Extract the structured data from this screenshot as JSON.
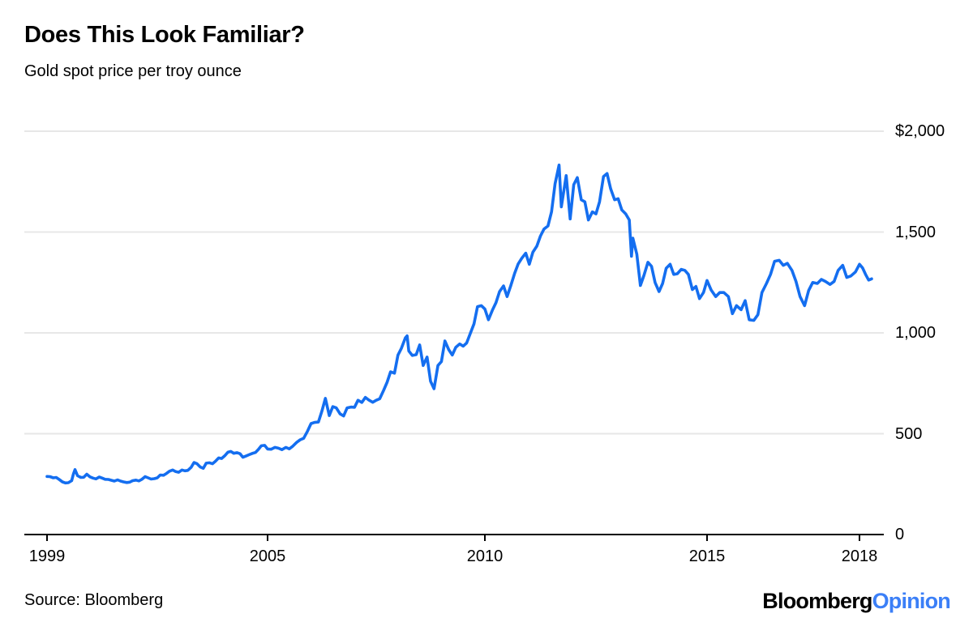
{
  "header": {
    "title": "Does This Look Familiar?",
    "subtitle": "Gold spot price per troy ounce"
  },
  "footer": {
    "source": "Source: Bloomberg",
    "logo": {
      "brand": "Bloomberg",
      "section": "Opinion"
    }
  },
  "colors": {
    "line": "#146ef0",
    "logo_section": "#3b7ff7",
    "grid": "#e7e7e7",
    "axis": "#000000",
    "text": "#000000"
  },
  "chart_data": {
    "type": "line",
    "title": "Does This Look Familiar?",
    "subtitle": "Gold spot price per troy ounce",
    "unit": "USD per troy ounce",
    "grid": "horizontal",
    "legend": "none",
    "ylim": [
      0,
      2000
    ],
    "y_ticks": [
      {
        "value": 2000,
        "label": "$2,000"
      },
      {
        "value": 1500,
        "label": "1,500"
      },
      {
        "value": 1000,
        "label": "1,000"
      },
      {
        "value": 500,
        "label": "500"
      },
      {
        "value": 0,
        "label": "0"
      }
    ],
    "x_ticks": [
      {
        "year": 1999,
        "label": "1999"
      },
      {
        "year": 2005,
        "label": "2005"
      },
      {
        "year": 2010,
        "label": "2010"
      },
      {
        "year": 2015,
        "label": "2015"
      },
      {
        "year": 2018,
        "label": "2018"
      }
    ],
    "series": [
      {
        "name": "Gold spot price",
        "points": [
          [
            1999.0,
            288
          ],
          [
            1999.08,
            287
          ],
          [
            1999.17,
            281
          ],
          [
            1999.25,
            283
          ],
          [
            1999.33,
            273
          ],
          [
            1999.42,
            261
          ],
          [
            1999.5,
            256
          ],
          [
            1999.58,
            257
          ],
          [
            1999.67,
            267
          ],
          [
            1999.72,
            301
          ],
          [
            1999.76,
            322
          ],
          [
            1999.83,
            292
          ],
          [
            1999.92,
            283
          ],
          [
            2000.0,
            284
          ],
          [
            2000.08,
            299
          ],
          [
            2000.17,
            286
          ],
          [
            2000.25,
            280
          ],
          [
            2000.33,
            276
          ],
          [
            2000.42,
            285
          ],
          [
            2000.5,
            280
          ],
          [
            2000.58,
            274
          ],
          [
            2000.67,
            273
          ],
          [
            2000.75,
            269
          ],
          [
            2000.83,
            265
          ],
          [
            2000.92,
            271
          ],
          [
            2001.0,
            265
          ],
          [
            2001.08,
            261
          ],
          [
            2001.17,
            258
          ],
          [
            2001.25,
            260
          ],
          [
            2001.33,
            267
          ],
          [
            2001.42,
            270
          ],
          [
            2001.5,
            266
          ],
          [
            2001.58,
            274
          ],
          [
            2001.67,
            287
          ],
          [
            2001.75,
            281
          ],
          [
            2001.83,
            275
          ],
          [
            2001.92,
            277
          ],
          [
            2002.0,
            281
          ],
          [
            2002.08,
            295
          ],
          [
            2002.17,
            294
          ],
          [
            2002.25,
            303
          ],
          [
            2002.33,
            314
          ],
          [
            2002.42,
            320
          ],
          [
            2002.5,
            312
          ],
          [
            2002.58,
            309
          ],
          [
            2002.67,
            320
          ],
          [
            2002.75,
            316
          ],
          [
            2002.83,
            318
          ],
          [
            2002.92,
            333
          ],
          [
            2003.0,
            357
          ],
          [
            2003.08,
            351
          ],
          [
            2003.17,
            335
          ],
          [
            2003.25,
            328
          ],
          [
            2003.33,
            354
          ],
          [
            2003.42,
            356
          ],
          [
            2003.5,
            351
          ],
          [
            2003.58,
            363
          ],
          [
            2003.67,
            380
          ],
          [
            2003.75,
            377
          ],
          [
            2003.83,
            390
          ],
          [
            2003.92,
            408
          ],
          [
            2004.0,
            412
          ],
          [
            2004.08,
            403
          ],
          [
            2004.17,
            406
          ],
          [
            2004.25,
            401
          ],
          [
            2004.33,
            383
          ],
          [
            2004.42,
            390
          ],
          [
            2004.5,
            396
          ],
          [
            2004.58,
            402
          ],
          [
            2004.67,
            407
          ],
          [
            2004.75,
            422
          ],
          [
            2004.83,
            440
          ],
          [
            2004.92,
            442
          ],
          [
            2005.0,
            424
          ],
          [
            2005.08,
            423
          ],
          [
            2005.17,
            432
          ],
          [
            2005.25,
            428
          ],
          [
            2005.33,
            421
          ],
          [
            2005.42,
            432
          ],
          [
            2005.5,
            425
          ],
          [
            2005.58,
            438
          ],
          [
            2005.67,
            457
          ],
          [
            2005.75,
            470
          ],
          [
            2005.83,
            477
          ],
          [
            2005.92,
            513
          ],
          [
            2006.0,
            550
          ],
          [
            2006.08,
            556
          ],
          [
            2006.17,
            558
          ],
          [
            2006.25,
            612
          ],
          [
            2006.33,
            675
          ],
          [
            2006.42,
            590
          ],
          [
            2006.5,
            634
          ],
          [
            2006.58,
            628
          ],
          [
            2006.67,
            598
          ],
          [
            2006.75,
            588
          ],
          [
            2006.83,
            628
          ],
          [
            2006.92,
            632
          ],
          [
            2007.0,
            631
          ],
          [
            2007.08,
            666
          ],
          [
            2007.17,
            655
          ],
          [
            2007.25,
            680
          ],
          [
            2007.33,
            667
          ],
          [
            2007.42,
            656
          ],
          [
            2007.5,
            666
          ],
          [
            2007.58,
            673
          ],
          [
            2007.67,
            715
          ],
          [
            2007.75,
            755
          ],
          [
            2007.83,
            807
          ],
          [
            2007.92,
            800
          ],
          [
            2008.0,
            890
          ],
          [
            2008.08,
            924
          ],
          [
            2008.17,
            975
          ],
          [
            2008.21,
            985
          ],
          [
            2008.25,
            910
          ],
          [
            2008.33,
            888
          ],
          [
            2008.42,
            892
          ],
          [
            2008.5,
            940
          ],
          [
            2008.58,
            838
          ],
          [
            2008.67,
            880
          ],
          [
            2008.75,
            760
          ],
          [
            2008.83,
            723
          ],
          [
            2008.92,
            838
          ],
          [
            2009.0,
            858
          ],
          [
            2009.08,
            960
          ],
          [
            2009.17,
            916
          ],
          [
            2009.25,
            890
          ],
          [
            2009.33,
            928
          ],
          [
            2009.42,
            945
          ],
          [
            2009.5,
            934
          ],
          [
            2009.58,
            950
          ],
          [
            2009.67,
            1000
          ],
          [
            2009.75,
            1045
          ],
          [
            2009.83,
            1130
          ],
          [
            2009.92,
            1135
          ],
          [
            2010.0,
            1118
          ],
          [
            2010.08,
            1065
          ],
          [
            2010.17,
            1113
          ],
          [
            2010.25,
            1150
          ],
          [
            2010.33,
            1205
          ],
          [
            2010.42,
            1233
          ],
          [
            2010.5,
            1180
          ],
          [
            2010.58,
            1232
          ],
          [
            2010.67,
            1295
          ],
          [
            2010.75,
            1342
          ],
          [
            2010.83,
            1370
          ],
          [
            2010.92,
            1395
          ],
          [
            2011.0,
            1340
          ],
          [
            2011.08,
            1400
          ],
          [
            2011.17,
            1430
          ],
          [
            2011.25,
            1480
          ],
          [
            2011.33,
            1515
          ],
          [
            2011.42,
            1530
          ],
          [
            2011.5,
            1600
          ],
          [
            2011.58,
            1740
          ],
          [
            2011.67,
            1832
          ],
          [
            2011.72,
            1625
          ],
          [
            2011.83,
            1780
          ],
          [
            2011.92,
            1565
          ],
          [
            2012.0,
            1735
          ],
          [
            2012.08,
            1770
          ],
          [
            2012.17,
            1660
          ],
          [
            2012.25,
            1650
          ],
          [
            2012.33,
            1560
          ],
          [
            2012.42,
            1600
          ],
          [
            2012.5,
            1590
          ],
          [
            2012.58,
            1650
          ],
          [
            2012.67,
            1775
          ],
          [
            2012.75,
            1790
          ],
          [
            2012.83,
            1715
          ],
          [
            2012.92,
            1660
          ],
          [
            2013.0,
            1665
          ],
          [
            2013.08,
            1610
          ],
          [
            2013.17,
            1590
          ],
          [
            2013.25,
            1560
          ],
          [
            2013.3,
            1380
          ],
          [
            2013.33,
            1470
          ],
          [
            2013.42,
            1390
          ],
          [
            2013.5,
            1235
          ],
          [
            2013.58,
            1285
          ],
          [
            2013.67,
            1350
          ],
          [
            2013.75,
            1330
          ],
          [
            2013.83,
            1250
          ],
          [
            2013.92,
            1205
          ],
          [
            2014.0,
            1245
          ],
          [
            2014.08,
            1320
          ],
          [
            2014.17,
            1340
          ],
          [
            2014.25,
            1290
          ],
          [
            2014.33,
            1293
          ],
          [
            2014.42,
            1315
          ],
          [
            2014.5,
            1310
          ],
          [
            2014.58,
            1290
          ],
          [
            2014.67,
            1215
          ],
          [
            2014.75,
            1230
          ],
          [
            2014.83,
            1170
          ],
          [
            2014.92,
            1200
          ],
          [
            2015.0,
            1260
          ],
          [
            2015.08,
            1213
          ],
          [
            2015.17,
            1180
          ],
          [
            2015.25,
            1200
          ],
          [
            2015.33,
            1200
          ],
          [
            2015.42,
            1180
          ],
          [
            2015.5,
            1095
          ],
          [
            2015.58,
            1135
          ],
          [
            2015.67,
            1115
          ],
          [
            2015.75,
            1160
          ],
          [
            2015.83,
            1065
          ],
          [
            2015.92,
            1062
          ],
          [
            2016.0,
            1090
          ],
          [
            2016.08,
            1200
          ],
          [
            2016.17,
            1245
          ],
          [
            2016.25,
            1290
          ],
          [
            2016.33,
            1355
          ],
          [
            2016.42,
            1360
          ],
          [
            2016.5,
            1335
          ],
          [
            2016.58,
            1345
          ],
          [
            2016.67,
            1310
          ],
          [
            2016.75,
            1255
          ],
          [
            2016.83,
            1180
          ],
          [
            2016.92,
            1135
          ],
          [
            2017.0,
            1210
          ],
          [
            2017.08,
            1250
          ],
          [
            2017.17,
            1245
          ],
          [
            2017.25,
            1265
          ],
          [
            2017.33,
            1255
          ],
          [
            2017.42,
            1240
          ],
          [
            2017.5,
            1255
          ],
          [
            2017.58,
            1310
          ],
          [
            2017.67,
            1335
          ],
          [
            2017.75,
            1275
          ],
          [
            2017.83,
            1282
          ],
          [
            2017.92,
            1302
          ],
          [
            2018.0,
            1340
          ],
          [
            2018.06,
            1322
          ],
          [
            2018.12,
            1290
          ],
          [
            2018.18,
            1262
          ],
          [
            2018.24,
            1268
          ]
        ]
      }
    ]
  }
}
